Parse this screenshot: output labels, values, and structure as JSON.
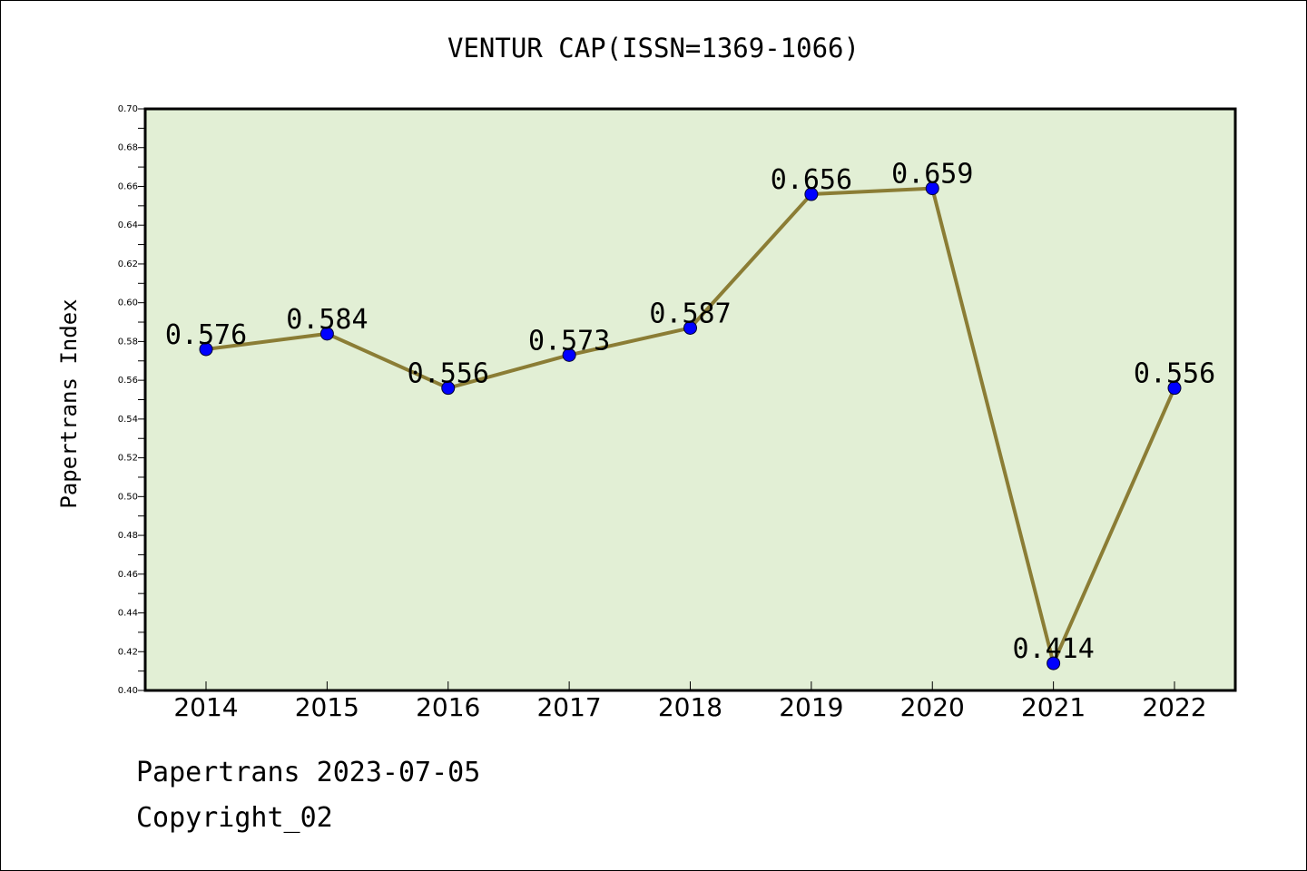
{
  "chart_data": {
    "type": "line",
    "title": "VENTUR CAP(ISSN=1369-1066)",
    "xlabel": "",
    "ylabel": "Papertrans Index",
    "categories": [
      "2014",
      "2015",
      "2016",
      "2017",
      "2018",
      "2019",
      "2020",
      "2021",
      "2022"
    ],
    "series": [
      {
        "values": [
          0.576,
          0.584,
          0.556,
          0.573,
          0.587,
          0.656,
          0.659,
          0.414,
          0.556
        ]
      }
    ],
    "data_labels": [
      "0.576",
      "0.584",
      "0.556",
      "0.573",
      "0.587",
      "0.656",
      "0.659",
      "0.414",
      "0.556"
    ],
    "ylim": [
      0.4,
      0.7
    ],
    "yticks": [
      "0.40",
      "0.42",
      "0.44",
      "0.46",
      "0.48",
      "0.50",
      "0.52",
      "0.54",
      "0.56",
      "0.58",
      "0.60",
      "0.62",
      "0.64",
      "0.66",
      "0.68",
      "0.70"
    ],
    "grid": false,
    "legend": "none",
    "colors": {
      "plot_background": "#e2efd5",
      "line": "#8b7d35",
      "marker": "#0000ff"
    }
  },
  "footer": {
    "line1": "Papertrans 2023-07-05",
    "line2": "Copyright_02"
  }
}
